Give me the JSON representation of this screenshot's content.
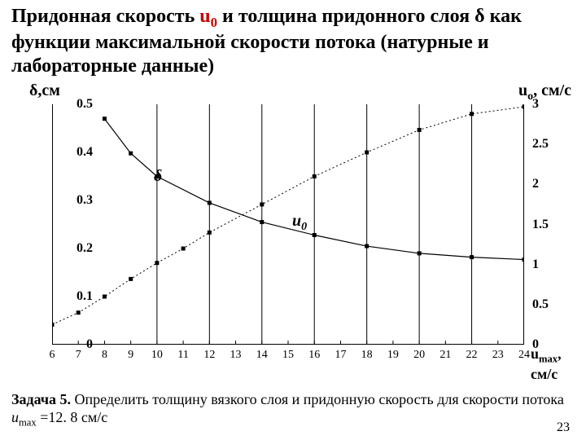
{
  "title_parts": {
    "p1": "Придонная скорость ",
    "u": "u",
    "u_sub": "0",
    "p2": " и толщина придонного слоя ",
    "delta": "δ",
    "p3": " как функции максимальной скорости потока (натурные и лабораторные данные)"
  },
  "chart": {
    "left_axis_label": "δ,см",
    "right_axis_label_base": "u",
    "right_axis_label_sub": "o",
    "right_axis_label_unit": ", см/с",
    "x_axis_label_base": "u",
    "x_axis_label_sub": "max",
    "x_axis_label_unit": ", см/с",
    "xlim": [
      6,
      24
    ],
    "ylim_left": [
      0,
      0.5
    ],
    "ylim_right": [
      0,
      3
    ],
    "xticks": [
      6,
      7,
      8,
      9,
      10,
      11,
      12,
      13,
      14,
      15,
      16,
      17,
      18,
      19,
      20,
      21,
      22,
      23,
      24
    ],
    "yticks_left": [
      "0",
      "0.1",
      "0.2",
      "0.3",
      "0.4",
      "0.5"
    ],
    "yticks_right": [
      "0",
      "0.5",
      "1",
      "1.5",
      "2",
      "2.5",
      "3"
    ],
    "grid_x": [
      10,
      12,
      14,
      16,
      18,
      20,
      22,
      24
    ],
    "grid_color": "#000000",
    "grid_width": 1,
    "background": "#ffffff",
    "delta_label": "δ",
    "u0_label_base": "u",
    "u0_label_sub": "0",
    "series_delta": {
      "type": "line_with_points",
      "color": "#000000",
      "line_width": 1.2,
      "marker": "square",
      "marker_size": 5,
      "points": [
        {
          "x": 8,
          "y": 0.47
        },
        {
          "x": 9,
          "y": 0.398
        },
        {
          "x": 10,
          "y": 0.35
        },
        {
          "x": 12,
          "y": 0.295
        },
        {
          "x": 14,
          "y": 0.255
        },
        {
          "x": 16,
          "y": 0.228
        },
        {
          "x": 18,
          "y": 0.205
        },
        {
          "x": 20,
          "y": 0.19
        },
        {
          "x": 22,
          "y": 0.182
        },
        {
          "x": 24,
          "y": 0.177
        }
      ]
    },
    "series_u0": {
      "type": "dashed_line_with_points",
      "color": "#000000",
      "line_width": 1,
      "dash": "2,3",
      "marker": "square",
      "marker_size": 5,
      "points": [
        {
          "x": 6,
          "y": 0.25
        },
        {
          "x": 7,
          "y": 0.4
        },
        {
          "x": 8,
          "y": 0.6
        },
        {
          "x": 9,
          "y": 0.82
        },
        {
          "x": 10,
          "y": 1.02
        },
        {
          "x": 11,
          "y": 1.2
        },
        {
          "x": 12,
          "y": 1.4
        },
        {
          "x": 14,
          "y": 1.75
        },
        {
          "x": 16,
          "y": 2.1
        },
        {
          "x": 18,
          "y": 2.4
        },
        {
          "x": 20,
          "y": 2.68
        },
        {
          "x": 22,
          "y": 2.88
        },
        {
          "x": 24,
          "y": 2.97
        }
      ]
    }
  },
  "task": {
    "label": "Задача 5.",
    "text1": " Определить толщину вязкого слоя и придонную скорость для скорости потока ",
    "var": "u",
    "var_sub": "max",
    "text2": " =12. 8 см/с"
  },
  "page_number": "23"
}
